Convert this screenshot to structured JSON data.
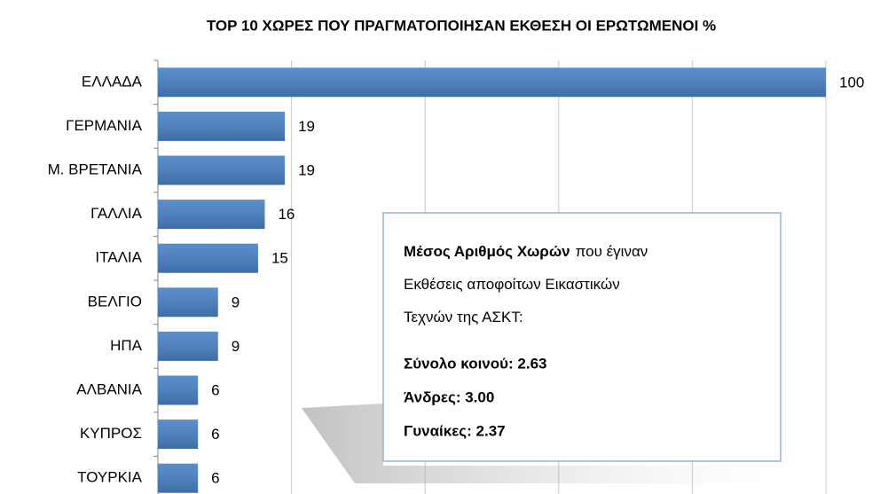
{
  "chart_data": {
    "type": "hbar",
    "title": "TOP 10 ΧΩΡΕΣ ΠΟΥ ΠΡΑΓΜΑΤΟΠΟΙΗΣΑΝ ΕΚΘΕΣΗ ΟΙ ΕΡΩΤΩΜΕΝΟΙ  %",
    "categories": [
      "ΕΛΛΑΔΑ",
      "ΓΕΡΜΑΝΙΑ",
      "Μ. ΒΡΕΤΑΝΙΑ",
      "ΓΑΛΛΙΑ",
      "ΙΤΑΛΙΑ",
      "ΒΕΛΓΙΟ",
      "ΗΠΑ",
      "ΑΛΒΑΝΙΑ",
      "ΚΥΠΡΟΣ",
      "ΤΟΥΡΚΙΑ"
    ],
    "values": [
      100,
      19,
      19,
      16,
      15,
      9,
      9,
      6,
      6,
      6
    ],
    "color": "#4f81bd",
    "xlim": [
      0,
      100
    ],
    "xticks": [
      0,
      20,
      40,
      60,
      80,
      100
    ],
    "grid": true,
    "annotation": {
      "intro_bold": "Μέσος Αριθμός Χωρών",
      "intro": [
        "που έγιναν",
        "Εκθέσεις αποφοίτων Εικαστικών",
        "Τεχνών της ΑΣΚΤ:"
      ],
      "stats": [
        "Σύνολο κοινού: 2.63",
        "Άνδρες: 3.00",
        "Γυναίκες: 2.37"
      ]
    }
  }
}
